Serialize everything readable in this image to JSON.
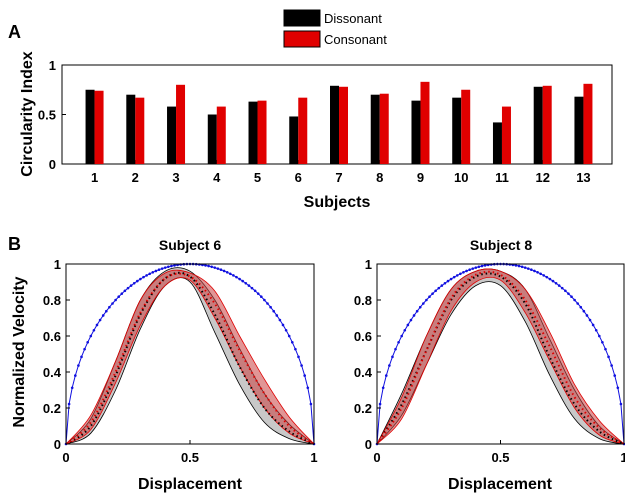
{
  "panels": {
    "a_letter": "A",
    "b_letter": "B"
  },
  "colors": {
    "dissonant": "#000000",
    "consonant": "#e00000",
    "band_dissonant": "#9a9a9a",
    "band_consonant": "#c84040",
    "optimal_curve": "#1010e0"
  },
  "chart_data": [
    {
      "type": "bar",
      "panel": "A",
      "title": "",
      "xlabel": "Subjects",
      "ylabel": "Circularity Index",
      "ylim": [
        0,
        1
      ],
      "yticks": [
        "0",
        "0.5",
        "1"
      ],
      "categories": [
        "1",
        "2",
        "3",
        "4",
        "5",
        "6",
        "7",
        "8",
        "9",
        "10",
        "11",
        "12",
        "13"
      ],
      "legend": {
        "placement": "top-center"
      },
      "series": [
        {
          "name": "Dissonant",
          "color": "#000000",
          "values": [
            0.75,
            0.7,
            0.58,
            0.5,
            0.63,
            0.48,
            0.79,
            0.7,
            0.64,
            0.67,
            0.42,
            0.78,
            0.68
          ]
        },
        {
          "name": "Consonant",
          "color": "#e00000",
          "values": [
            0.74,
            0.67,
            0.8,
            0.58,
            0.64,
            0.67,
            0.78,
            0.71,
            0.83,
            0.75,
            0.58,
            0.79,
            0.81
          ]
        }
      ]
    },
    {
      "type": "line",
      "panel": "B",
      "title": "Subject 6",
      "xlabel": "Displacement",
      "ylabel": "Normalized Velocity",
      "xlim": [
        0,
        1
      ],
      "ylim": [
        0,
        1
      ],
      "xticks": [
        "0",
        "0.5",
        "1"
      ],
      "yticks": [
        "0",
        "0.2",
        "0.4",
        "0.6",
        "0.8",
        "1"
      ],
      "x": [
        0,
        0.1,
        0.2,
        0.3,
        0.4,
        0.5,
        0.6,
        0.7,
        0.8,
        0.9,
        1.0
      ],
      "series": [
        {
          "color": "#1010e0",
          "style": "dotted",
          "values": [
            0,
            0.6,
            0.8,
            0.92,
            0.98,
            1.0,
            0.98,
            0.92,
            0.8,
            0.6,
            0
          ]
        },
        {
          "color": "#000000",
          "style": "dotted",
          "values": [
            0,
            0.1,
            0.38,
            0.72,
            0.92,
            0.93,
            0.72,
            0.43,
            0.2,
            0.07,
            0
          ],
          "band": [
            [
              0,
              0.06,
              0.3,
              0.64,
              0.88,
              0.9,
              0.62,
              0.33,
              0.12,
              0.03,
              0
            ],
            [
              0,
              0.14,
              0.46,
              0.8,
              0.96,
              0.96,
              0.8,
              0.53,
              0.28,
              0.11,
              0
            ]
          ]
        },
        {
          "color": "#e00000",
          "style": "dotted",
          "values": [
            0,
            0.12,
            0.4,
            0.73,
            0.92,
            0.93,
            0.78,
            0.52,
            0.28,
            0.1,
            0
          ],
          "band": [
            [
              0,
              0.08,
              0.34,
              0.66,
              0.88,
              0.91,
              0.7,
              0.43,
              0.2,
              0.06,
              0
            ],
            [
              0,
              0.16,
              0.46,
              0.8,
              0.95,
              0.95,
              0.85,
              0.6,
              0.36,
              0.15,
              0
            ]
          ]
        }
      ]
    },
    {
      "type": "line",
      "panel": "B",
      "title": "Subject 8",
      "xlabel": "Displacement",
      "ylabel": "",
      "xlim": [
        0,
        1
      ],
      "ylim": [
        0,
        1
      ],
      "xticks": [
        "0",
        "0.5",
        "1"
      ],
      "yticks": [
        "0",
        "0.2",
        "0.4",
        "0.6",
        "0.8",
        "1"
      ],
      "x": [
        0,
        0.1,
        0.2,
        0.3,
        0.4,
        0.5,
        0.6,
        0.7,
        0.8,
        0.9,
        1.0
      ],
      "series": [
        {
          "color": "#1010e0",
          "style": "dotted",
          "values": [
            0,
            0.6,
            0.8,
            0.92,
            0.98,
            1.0,
            0.98,
            0.92,
            0.8,
            0.6,
            0
          ]
        },
        {
          "color": "#000000",
          "style": "dotted",
          "values": [
            0,
            0.22,
            0.52,
            0.8,
            0.93,
            0.93,
            0.78,
            0.48,
            0.22,
            0.07,
            0
          ],
          "band": [
            [
              0,
              0.16,
              0.44,
              0.72,
              0.88,
              0.88,
              0.68,
              0.38,
              0.14,
              0.03,
              0
            ],
            [
              0,
              0.28,
              0.6,
              0.86,
              0.96,
              0.96,
              0.86,
              0.58,
              0.3,
              0.1,
              0
            ]
          ]
        },
        {
          "color": "#e00000",
          "style": "dotted",
          "values": [
            0,
            0.2,
            0.52,
            0.81,
            0.94,
            0.94,
            0.8,
            0.54,
            0.26,
            0.09,
            0
          ],
          "band": [
            [
              0,
              0.14,
              0.44,
              0.74,
              0.9,
              0.91,
              0.73,
              0.46,
              0.2,
              0.05,
              0
            ],
            [
              0,
              0.26,
              0.6,
              0.86,
              0.96,
              0.96,
              0.86,
              0.62,
              0.33,
              0.13,
              0
            ]
          ]
        }
      ]
    }
  ]
}
